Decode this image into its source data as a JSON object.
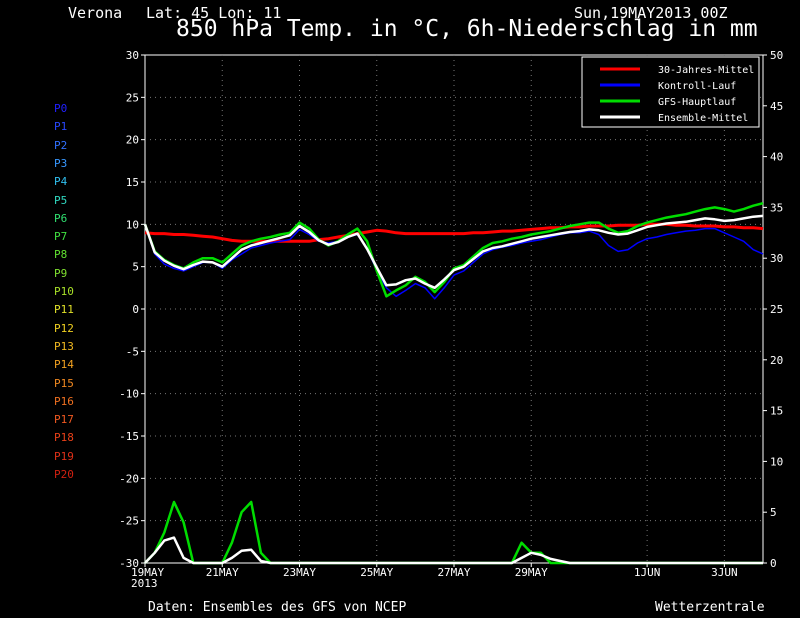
{
  "header": {
    "location": "Verona",
    "coords": "Lat: 45 Lon: 11",
    "run": "Sun,19MAY2013 00Z",
    "title": "850 hPa Temp. in °C, 6h-Niederschlag in mm"
  },
  "footer": {
    "source": "Daten: Ensembles des GFS von NCEP",
    "brand": "Wetterzentrale"
  },
  "members": [
    {
      "label": "P0",
      "color": "#2020ff"
    },
    {
      "label": "P1",
      "color": "#2848ff"
    },
    {
      "label": "P2",
      "color": "#3070ff"
    },
    {
      "label": "P3",
      "color": "#3898ff"
    },
    {
      "label": "P4",
      "color": "#30c0f0"
    },
    {
      "label": "P5",
      "color": "#30d8c0"
    },
    {
      "label": "P6",
      "color": "#30e070"
    },
    {
      "label": "P7",
      "color": "#40e040"
    },
    {
      "label": "P8",
      "color": "#60e030"
    },
    {
      "label": "P9",
      "color": "#80e030"
    },
    {
      "label": "P10",
      "color": "#a8e028"
    },
    {
      "label": "P11",
      "color": "#e0e028"
    },
    {
      "label": "P12",
      "color": "#f0d020"
    },
    {
      "label": "P13",
      "color": "#f0b820"
    },
    {
      "label": "P14",
      "color": "#f0a020"
    },
    {
      "label": "P15",
      "color": "#f08820"
    },
    {
      "label": "P16",
      "color": "#f07020"
    },
    {
      "label": "P17",
      "color": "#f05820"
    },
    {
      "label": "P18",
      "color": "#e84018"
    },
    {
      "label": "P19",
      "color": "#e03018"
    },
    {
      "label": "P20",
      "color": "#d02010"
    }
  ],
  "chart_data": {
    "type": "line",
    "x_ticks": [
      "19MAY\n2013",
      "21MAY",
      "23MAY",
      "25MAY",
      "27MAY",
      "29MAY",
      "1JUN",
      "3JUN"
    ],
    "x_tick_steps": [
      0,
      8,
      16,
      24,
      32,
      40,
      52,
      60
    ],
    "steps_total": 64,
    "y_left": {
      "min": -30,
      "max": 30,
      "ticks": [
        30,
        25,
        20,
        15,
        10,
        5,
        0,
        -5,
        -10,
        -15,
        -20,
        -25,
        -30
      ],
      "unit": "°C"
    },
    "y_right": {
      "min": 0,
      "max": 50,
      "ticks": [
        50,
        45,
        40,
        35,
        30,
        25,
        20,
        15,
        10,
        5,
        0
      ],
      "unit": "mm"
    },
    "grid": true,
    "legend": {
      "placement": "top-right",
      "entries": [
        {
          "label": "30-Jahres-Mittel",
          "color": "#ff0000"
        },
        {
          "label": "Kontroll-Lauf",
          "color": "#0000ff"
        },
        {
          "label": "GFS-Hauptlauf",
          "color": "#00dd00"
        },
        {
          "label": "Ensemble-Mittel",
          "color": "#ffffff"
        }
      ]
    },
    "series": [
      {
        "name": "30-Jahres-Mittel",
        "color": "#ff0000",
        "axis": "left",
        "values": [
          9,
          8.9,
          8.9,
          8.8,
          8.8,
          8.7,
          8.6,
          8.5,
          8.3,
          8.1,
          8,
          8,
          8,
          8,
          8,
          8,
          8,
          8,
          8.2,
          8.3,
          8.5,
          8.7,
          8.9,
          9.1,
          9.3,
          9.2,
          9,
          8.9,
          8.9,
          8.9,
          8.9,
          8.9,
          8.9,
          8.9,
          9,
          9,
          9.1,
          9.2,
          9.2,
          9.3,
          9.4,
          9.5,
          9.6,
          9.6,
          9.7,
          9.7,
          9.8,
          9.8,
          9.8,
          9.9,
          9.9,
          9.9,
          10,
          10,
          10,
          9.9,
          9.9,
          9.8,
          9.8,
          9.8,
          9.7,
          9.7,
          9.6,
          9.6,
          9.5
        ]
      },
      {
        "name": "Kontroll-Lauf",
        "color": "#0000ff",
        "axis": "left",
        "values": [
          10,
          6.5,
          5.3,
          4.8,
          4.5,
          5,
          5.5,
          5.5,
          4.8,
          5.8,
          6.5,
          7.2,
          7.5,
          7.8,
          8,
          8.2,
          9.4,
          8.8,
          8,
          7.8,
          8,
          8.5,
          8.8,
          7.2,
          4.5,
          2.5,
          1.5,
          2.2,
          3,
          2.5,
          1.2,
          2.5,
          4,
          4.5,
          5.5,
          6.5,
          7,
          7.3,
          7.5,
          7.8,
          8,
          8.2,
          8.5,
          8.8,
          9,
          9,
          9.2,
          8.8,
          7.5,
          6.8,
          7,
          7.8,
          8.3,
          8.5,
          8.8,
          9,
          9.2,
          9.3,
          9.5,
          9.5,
          9,
          8.5,
          8,
          7,
          6.5
        ]
      },
      {
        "name": "GFS-Hauptlauf",
        "color": "#00dd00",
        "axis": "left",
        "values": [
          10,
          6.8,
          5.8,
          5.2,
          4.8,
          5.5,
          6,
          6,
          5.5,
          6.5,
          7.5,
          8,
          8.3,
          8.5,
          8.8,
          9,
          10.2,
          9.5,
          8.2,
          7.5,
          8,
          8.8,
          9.5,
          8,
          4.5,
          1.5,
          2.2,
          2.8,
          3.8,
          3.2,
          2,
          3.2,
          4.8,
          5.2,
          6.2,
          7.2,
          7.8,
          8,
          8.3,
          8.5,
          8.8,
          9,
          9.2,
          9.5,
          9.8,
          10,
          10.2,
          10.2,
          9.5,
          9,
          9.2,
          9.8,
          10.2,
          10.5,
          10.8,
          11,
          11.2,
          11.5,
          11.8,
          12,
          11.8,
          11.5,
          11.8,
          12.2,
          12.5
        ]
      },
      {
        "name": "Ensemble-Mittel",
        "color": "#ffffff",
        "axis": "left",
        "values": [
          10,
          6.7,
          5.7,
          5.1,
          4.7,
          5.2,
          5.6,
          5.5,
          5,
          6,
          7,
          7.5,
          7.8,
          8.1,
          8.4,
          8.7,
          9.8,
          9.1,
          8.1,
          7.6,
          7.9,
          8.5,
          8.9,
          7.1,
          4.9,
          2.8,
          2.9,
          3.4,
          3.6,
          3,
          2.5,
          3.5,
          4.6,
          5,
          5.9,
          6.8,
          7.2,
          7.4,
          7.7,
          8,
          8.3,
          8.5,
          8.7,
          8.9,
          9.1,
          9.2,
          9.4,
          9.3,
          9,
          8.8,
          8.9,
          9.3,
          9.7,
          9.9,
          10.1,
          10.2,
          10.3,
          10.5,
          10.7,
          10.6,
          10.4,
          10.5,
          10.7,
          10.9,
          11
        ]
      },
      {
        "name": "GFS-Hauptlauf",
        "color": "#00dd00",
        "axis": "right",
        "values": [
          0,
          1,
          3,
          6,
          4,
          0,
          0,
          0,
          0,
          2,
          5,
          6,
          1,
          0,
          0,
          0,
          0,
          0,
          0,
          0,
          0,
          0,
          0,
          0,
          0,
          0,
          0,
          0,
          0,
          0,
          0,
          0,
          0,
          0,
          0,
          0,
          0,
          0,
          0,
          2,
          1,
          1,
          0,
          0,
          0,
          0,
          0,
          0,
          0,
          0,
          0,
          0,
          0,
          0,
          0,
          0,
          0,
          0,
          0,
          0,
          0,
          0,
          0,
          0,
          0
        ]
      },
      {
        "name": "Ensemble-Mittel",
        "color": "#ffffff",
        "axis": "right",
        "values": [
          0,
          1,
          2.2,
          2.5,
          0.5,
          0,
          0,
          0,
          0,
          0.5,
          1.2,
          1.3,
          0.2,
          0,
          0,
          0,
          0,
          0,
          0,
          0,
          0,
          0,
          0,
          0,
          0,
          0,
          0,
          0,
          0,
          0,
          0,
          0,
          0,
          0,
          0,
          0,
          0,
          0,
          0,
          0.5,
          1,
          0.8,
          0.4,
          0.2,
          0,
          0,
          0,
          0,
          0,
          0,
          0,
          0,
          0,
          0,
          0,
          0,
          0,
          0,
          0,
          0,
          0,
          0,
          0,
          0,
          0
        ]
      }
    ]
  }
}
